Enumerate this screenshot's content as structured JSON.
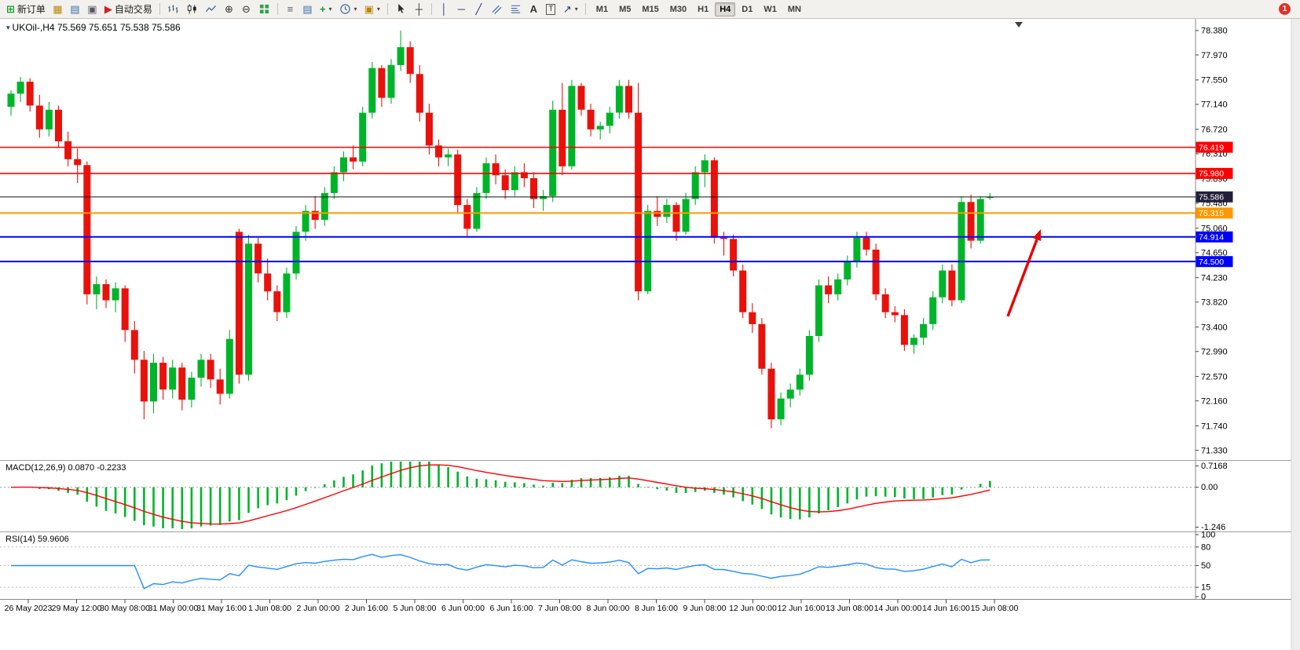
{
  "toolbar": {
    "new_order_label": "新订单",
    "autotrading_label": "自动交易",
    "text_tool_label": "A",
    "label_tool_label": "T",
    "timeframes": [
      "M1",
      "M5",
      "M15",
      "M30",
      "H1",
      "H4",
      "D1",
      "W1",
      "MN"
    ],
    "active_timeframe": "H4",
    "notification_count": "1"
  },
  "icons": {
    "new_order": "⊞",
    "market_watch": "▦",
    "navigator": "▤",
    "terminal": "▣",
    "autotrading": "▶",
    "zoom_in": "⊕",
    "zoom_out": "⊖",
    "objects_list": "≡",
    "data_window": "▤",
    "add_indicator": "+",
    "template": "▣",
    "dropdown_caret": "▾",
    "crosshair": "┼",
    "vertical_line": "│",
    "horizontal_line": "─",
    "trendline": "╱",
    "arrow_tool": "↗",
    "chart_menu": "▾"
  },
  "chart": {
    "title": "UKOil-,H4 75.569 75.651 75.538 75.586",
    "symbol": "UKOil-",
    "period": "H4"
  },
  "chart_data": [
    {
      "type": "candlestick",
      "title": "UKOil-,H4",
      "ohlc_display": {
        "open": 75.569,
        "high": 75.651,
        "low": 75.538,
        "close": 75.586
      },
      "ylim": [
        71.18,
        78.55
      ],
      "yticks": [
        "78.380",
        "77.970",
        "77.550",
        "77.140",
        "76.720",
        "76.310",
        "75.890",
        "75.480",
        "75.060",
        "74.650",
        "74.230",
        "73.820",
        "73.400",
        "72.990",
        "72.570",
        "72.160",
        "71.740",
        "71.330"
      ],
      "x_labels": [
        "26 May 2023",
        "29 May 12:00",
        "30 May 08:00",
        "31 May 00:00",
        "31 May 16:00",
        "1 Jun 08:00",
        "2 Jun 00:00",
        "2 Jun 16:00",
        "5 Jun 08:00",
        "6 Jun 00:00",
        "6 Jun 16:00",
        "7 Jun 08:00",
        "8 Jun 00:00",
        "8 Jun 16:00",
        "9 Jun 08:00",
        "12 Jun 00:00",
        "12 Jun 16:00",
        "13 Jun 08:00",
        "14 Jun 00:00",
        "14 Jun 16:00",
        "15 Jun 08:00"
      ],
      "candles": [
        [
          77.1,
          77.38,
          76.95,
          77.32
        ],
        [
          77.32,
          77.6,
          77.18,
          77.52
        ],
        [
          77.52,
          77.58,
          77.02,
          77.12
        ],
        [
          77.12,
          77.3,
          76.58,
          76.72
        ],
        [
          76.72,
          77.18,
          76.6,
          77.05
        ],
        [
          77.05,
          77.12,
          76.42,
          76.52
        ],
        [
          76.52,
          76.68,
          76.1,
          76.22
        ],
        [
          76.22,
          76.4,
          75.82,
          76.12
        ],
        [
          76.12,
          76.18,
          73.78,
          73.95
        ],
        [
          73.95,
          74.25,
          73.7,
          74.12
        ],
        [
          74.12,
          74.2,
          73.72,
          73.85
        ],
        [
          73.85,
          74.15,
          73.65,
          74.05
        ],
        [
          74.05,
          74.1,
          73.15,
          73.35
        ],
        [
          73.35,
          73.5,
          72.62,
          72.85
        ],
        [
          72.85,
          73.0,
          71.85,
          72.15
        ],
        [
          72.15,
          72.95,
          71.95,
          72.8
        ],
        [
          72.8,
          72.9,
          72.18,
          72.35
        ],
        [
          72.35,
          72.85,
          72.2,
          72.72
        ],
        [
          72.72,
          72.8,
          72.0,
          72.18
        ],
        [
          72.18,
          72.65,
          72.05,
          72.55
        ],
        [
          72.55,
          72.95,
          72.4,
          72.85
        ],
        [
          72.85,
          72.95,
          72.38,
          72.52
        ],
        [
          72.52,
          72.7,
          72.1,
          72.28
        ],
        [
          72.28,
          73.35,
          72.2,
          73.2
        ],
        [
          75.0,
          75.05,
          72.45,
          72.6
        ],
        [
          72.6,
          74.95,
          72.5,
          74.8
        ],
        [
          74.8,
          74.9,
          74.15,
          74.3
        ],
        [
          74.3,
          74.55,
          73.85,
          74.0
        ],
        [
          74.0,
          74.1,
          73.5,
          73.65
        ],
        [
          73.65,
          74.4,
          73.55,
          74.3
        ],
        [
          74.3,
          75.1,
          74.2,
          75.0
        ],
        [
          75.0,
          75.45,
          74.85,
          75.35
        ],
        [
          75.35,
          75.6,
          75.05,
          75.2
        ],
        [
          75.2,
          75.75,
          75.1,
          75.65
        ],
        [
          75.65,
          76.1,
          75.55,
          76.0
        ],
        [
          76.0,
          76.35,
          75.85,
          76.25
        ],
        [
          76.25,
          76.45,
          76.05,
          76.18
        ],
        [
          76.18,
          77.1,
          76.1,
          77.0
        ],
        [
          77.0,
          77.85,
          76.9,
          77.75
        ],
        [
          77.75,
          77.8,
          77.1,
          77.25
        ],
        [
          77.25,
          77.9,
          77.15,
          77.8
        ],
        [
          77.8,
          78.38,
          77.7,
          78.1
        ],
        [
          78.1,
          78.2,
          77.5,
          77.65
        ],
        [
          77.65,
          77.8,
          76.85,
          77.0
        ],
        [
          77.0,
          77.15,
          76.3,
          76.45
        ],
        [
          76.45,
          76.55,
          76.1,
          76.25
        ],
        [
          76.25,
          76.4,
          76.1,
          76.3
        ],
        [
          76.3,
          76.38,
          75.3,
          75.45
        ],
        [
          75.45,
          75.55,
          74.92,
          75.05
        ],
        [
          75.05,
          75.75,
          75.0,
          75.65
        ],
        [
          75.65,
          76.25,
          75.55,
          76.15
        ],
        [
          76.15,
          76.3,
          75.8,
          75.95
        ],
        [
          75.95,
          76.05,
          75.55,
          75.7
        ],
        [
          75.7,
          76.1,
          75.6,
          76.0
        ],
        [
          76.0,
          76.15,
          75.75,
          75.9
        ],
        [
          75.9,
          76.0,
          75.4,
          75.55
        ],
        [
          75.55,
          75.7,
          75.35,
          75.6
        ],
        [
          75.6,
          77.2,
          75.5,
          77.05
        ],
        [
          77.05,
          77.5,
          75.95,
          76.1
        ],
        [
          76.1,
          77.55,
          76.05,
          77.45
        ],
        [
          77.45,
          77.5,
          76.95,
          77.05
        ],
        [
          77.05,
          77.15,
          76.6,
          76.72
        ],
        [
          76.72,
          76.85,
          76.55,
          76.78
        ],
        [
          76.78,
          77.1,
          76.65,
          77.0
        ],
        [
          77.0,
          77.55,
          76.9,
          77.45
        ],
        [
          77.45,
          77.55,
          76.9,
          77.0
        ],
        [
          77.0,
          77.5,
          73.85,
          74.0
        ],
        [
          74.0,
          75.45,
          73.95,
          75.35
        ],
        [
          75.35,
          75.6,
          75.1,
          75.25
        ],
        [
          75.25,
          75.55,
          75.15,
          75.45
        ],
        [
          75.45,
          75.5,
          74.85,
          75.0
        ],
        [
          75.0,
          75.65,
          74.95,
          75.55
        ],
        [
          75.55,
          76.1,
          75.45,
          76.0
        ],
        [
          76.0,
          76.3,
          75.75,
          76.2
        ],
        [
          76.2,
          76.25,
          74.8,
          74.9
        ],
        [
          74.9,
          75.0,
          74.6,
          74.88
        ],
        [
          74.88,
          74.95,
          74.25,
          74.35
        ],
        [
          74.35,
          74.45,
          73.55,
          73.65
        ],
        [
          73.65,
          73.8,
          73.3,
          73.45
        ],
        [
          73.45,
          73.55,
          72.6,
          72.7
        ],
        [
          72.7,
          72.8,
          71.7,
          71.85
        ],
        [
          71.85,
          72.3,
          71.75,
          72.2
        ],
        [
          72.2,
          72.45,
          72.05,
          72.35
        ],
        [
          72.35,
          72.7,
          72.25,
          72.6
        ],
        [
          72.6,
          73.35,
          72.5,
          73.25
        ],
        [
          73.25,
          74.2,
          73.15,
          74.1
        ],
        [
          74.1,
          74.25,
          73.8,
          73.95
        ],
        [
          73.95,
          74.3,
          73.85,
          74.2
        ],
        [
          74.2,
          74.6,
          74.1,
          74.5
        ],
        [
          74.5,
          75.0,
          74.4,
          74.9
        ],
        [
          74.9,
          75.0,
          74.6,
          74.7
        ],
        [
          74.7,
          74.8,
          73.85,
          73.95
        ],
        [
          73.95,
          74.05,
          73.55,
          73.65
        ],
        [
          73.65,
          73.75,
          73.48,
          73.6
        ],
        [
          73.6,
          73.7,
          73.0,
          73.1
        ],
        [
          73.1,
          73.28,
          72.95,
          73.22
        ],
        [
          73.22,
          73.55,
          73.1,
          73.45
        ],
        [
          73.45,
          74.0,
          73.35,
          73.9
        ],
        [
          73.9,
          74.45,
          73.8,
          74.35
        ],
        [
          74.35,
          74.45,
          73.75,
          73.85
        ],
        [
          73.85,
          75.6,
          73.8,
          75.5
        ],
        [
          75.5,
          75.62,
          74.72,
          74.85
        ],
        [
          74.85,
          75.6,
          74.8,
          75.55
        ],
        [
          75.569,
          75.651,
          75.538,
          75.586
        ]
      ],
      "hlines": [
        {
          "price": 76.419,
          "label": "76.419",
          "color": "#ff0000",
          "width": 1.6
        },
        {
          "price": 75.98,
          "label": "75.980",
          "color": "#ff0000",
          "width": 1.6
        },
        {
          "price": 75.315,
          "label": "75.315",
          "color": "#ff9800",
          "width": 2
        },
        {
          "price": 74.914,
          "label": "74.914",
          "color": "#0000ff",
          "width": 2
        },
        {
          "price": 74.5,
          "label": "74.500",
          "color": "#0000ff",
          "width": 2
        }
      ],
      "current_price": {
        "price": 75.586,
        "label": "75.586",
        "line_color": "#111111",
        "tag_color": "#20203a"
      },
      "annotation_arrow": {
        "from": [
          1283,
          403
        ],
        "to": [
          1325,
          292
        ],
        "color": "#e60000"
      },
      "colors": {
        "up": "#00b42a",
        "down": "#e8120c",
        "background": "#ffffff"
      }
    },
    {
      "type": "macd-histogram",
      "label": "MACD(12,26,9) 0.0870 -0.2233",
      "params": [
        12,
        26,
        9
      ],
      "values": {
        "macd": 0.087,
        "signal": -0.2233
      },
      "yticks": [
        "0.7168",
        "0.00",
        "-1.246"
      ],
      "ylim": [
        -1.32,
        0.78
      ],
      "colors": {
        "histogram": "#00b42a",
        "signal": "#ff0000"
      }
    },
    {
      "type": "rsi",
      "label": "RSI(14) 59.9606",
      "period": 14,
      "value": 59.9606,
      "yticks": [
        "100",
        "80",
        "50",
        "15",
        "0"
      ],
      "levels": [
        80,
        50,
        15
      ],
      "ylim": [
        0,
        100
      ],
      "colors": {
        "line": "#1f8fff"
      }
    }
  ]
}
